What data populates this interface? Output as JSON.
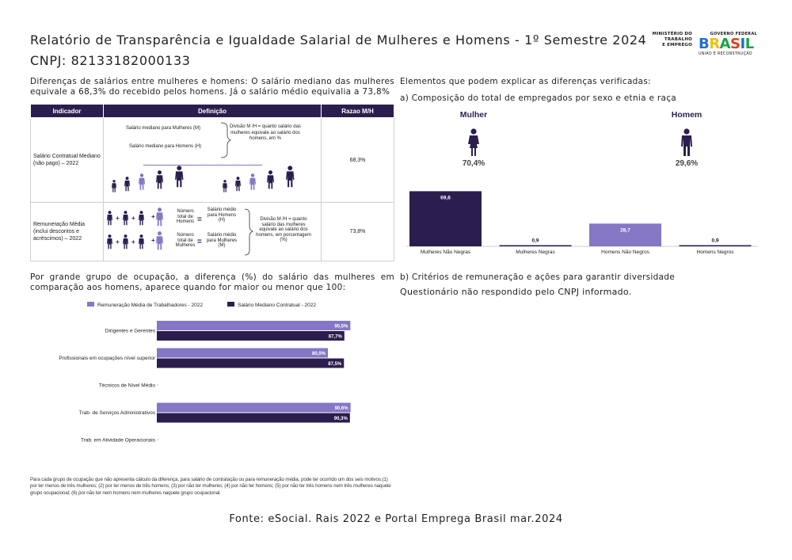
{
  "header": {
    "title": "Relatório de Transparência e Igualdade Salarial de Mulheres e Homens - 1º Semestre 2024",
    "cnpj": "CNPJ: 82133182000133"
  },
  "logo": {
    "ministry": [
      "MINISTÉRIO DO",
      "TRABALHO",
      "E EMPREGO"
    ],
    "gov_federal": "GOVERNO FEDERAL",
    "brasil": "BRASIL",
    "tagline": "UNIÃO E RECONSTRUÇÃO"
  },
  "left_top": {
    "intro": "Diferenças de salários entre mulheres e homens: O salário mediano das mulheres equivale a 68,3% do recebido pelos homens. Já o salário médio equivalia a 73,8%",
    "table": {
      "headers": [
        "Indicador",
        "Definição",
        "Razao M/H"
      ],
      "rows": [
        {
          "indicator": "Salário Contratual Mediano (não pago) – 2022",
          "def_label1": "Salário mediano para Mulheres (M)",
          "def_label2": "Salário mediano para Homens (H)",
          "def_division": "Divisão M /H = quanto salário das mulheres equivale ao salário dos homens, em %",
          "ratio": "68,3%"
        },
        {
          "indicator": "Remuneração Média (inclui descontos e acréscimos) – 2022",
          "def_num_h": "Número total de Homens",
          "def_sal_h": "Salário médio para Homens (H)",
          "def_num_m": "Número total de Mulheres",
          "def_sal_m": "Salário médio para Mulheres (M)",
          "def_division": "Divisão M /H = quanto salário das mulheres equivale ao salário dos homens, em porcentagem (%)",
          "ratio": "73,8%"
        }
      ]
    }
  },
  "right_top": {
    "heading": "Elementos que podem explicar as diferenças verificadas:",
    "sub_a": "a) Composição do total de empregados por sexo e etnia e raça",
    "mulher_label": "Mulher",
    "mulher_pct": "70,4%",
    "homem_label": "Homem",
    "homem_pct": "29,6%"
  },
  "left_bottom": {
    "heading": "Por grande grupo de ocupação, a diferença (%) do salário das mulheres em comparação aos homens, aparece quando for maior ou menor que 100:",
    "footnote": "Para cada grupo de ocupação que não apresenta cálculo da diferença, para salário de contratação ou para remuneração média, pode ter ocorrido um dos seis motivos:(1) por ter menos de três mulheres; (2) por ter menos de três homens; (3) por não ter mulheres; (4) por não ter homens; (5) por não ter três homens nem três mulheres naquele grupo ocupacional; (6) por não ter nem homens nem mulheres naquele grupo ocupacional."
  },
  "right_bottom": {
    "sub_b": "b) Critérios de remuneração e ações para garantir diversidade",
    "answer": "Questionário não respondido pelo CNPJ informado."
  },
  "footer": {
    "source": "Fonte: eSocial. Rais 2022 e Portal Emprega Brasil mar.2024"
  },
  "colors": {
    "dark": "#2b1e4e",
    "light": "#8577c4"
  },
  "chart_data": [
    {
      "type": "bar",
      "categories": [
        "Mulheres Não Negras",
        "Mulheres Negras",
        "Homens Não Negros",
        "Homens Negros"
      ],
      "values": [
        69.6,
        0.9,
        28.7,
        0.9
      ],
      "value_labels": [
        "69,6",
        "0,9",
        "28,7",
        "0,9"
      ],
      "bar_colors": [
        "#2b1e4e",
        "#2b1e4e",
        "#8577c4",
        "#2b1e4e"
      ],
      "ylim": [
        0,
        70
      ]
    },
    {
      "type": "bar",
      "orientation": "horizontal",
      "categories": [
        "Dirigentes e Gerentes",
        "Profissionais em ocupações nível superior",
        "Técnicos de Nível Médio",
        "Trab. de Serviços Administrativos",
        "Trab. em Atividade Operacionais"
      ],
      "series": [
        {
          "name": "Remuneração Média de Trabalhadores - 2022",
          "values": [
            90.5,
            80.0,
            null,
            90.6,
            null
          ],
          "labels": [
            "90,5%",
            "80,0%",
            "",
            "90,6%",
            ""
          ]
        },
        {
          "name": "Salário Mediano Contratual - 2022",
          "values": [
            87.7,
            87.5,
            null,
            90.3,
            null
          ],
          "labels": [
            "87,7%",
            "87,5%",
            "",
            "90,3%",
            ""
          ]
        }
      ],
      "legend": "top"
    }
  ]
}
